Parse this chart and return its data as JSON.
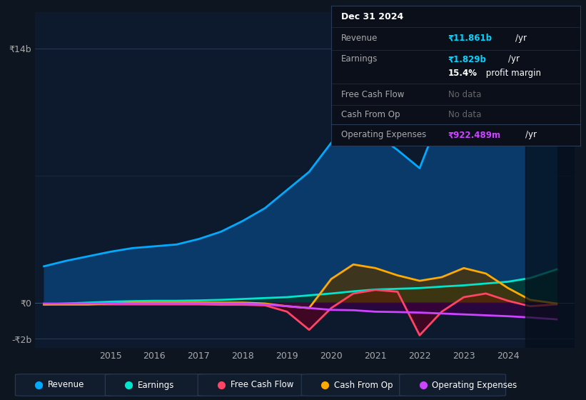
{
  "bg_color": "#0d1520",
  "panel_bg": "#0d1a2d",
  "ylim": [
    -2.5,
    16
  ],
  "xlim": [
    2013.3,
    2025.5
  ],
  "legend": [
    {
      "label": "Revenue",
      "color": "#00aaff"
    },
    {
      "label": "Earnings",
      "color": "#00e5cc"
    },
    {
      "label": "Free Cash Flow",
      "color": "#ff4466"
    },
    {
      "label": "Cash From Op",
      "color": "#ffaa00"
    },
    {
      "label": "Operating Expenses",
      "color": "#cc44ff"
    }
  ],
  "revenue": {
    "color": "#00aaff",
    "fill_color": "#0a3a6a",
    "x": [
      2013.5,
      2014.0,
      2014.5,
      2015.0,
      2015.5,
      2016.0,
      2016.5,
      2017.0,
      2017.5,
      2018.0,
      2018.5,
      2019.0,
      2019.5,
      2020.0,
      2020.5,
      2021.0,
      2021.5,
      2022.0,
      2022.5,
      2023.0,
      2023.5,
      2024.0,
      2024.5,
      2025.1
    ],
    "y": [
      2.0,
      2.3,
      2.55,
      2.8,
      3.0,
      3.1,
      3.2,
      3.5,
      3.9,
      4.5,
      5.2,
      6.2,
      7.2,
      8.8,
      9.6,
      9.3,
      8.4,
      7.4,
      10.5,
      13.5,
      13.0,
      11.0,
      10.5,
      11.861
    ]
  },
  "earnings": {
    "color": "#00e5cc",
    "fill_color": "#003d35",
    "x": [
      2013.5,
      2014.0,
      2014.5,
      2015.0,
      2015.5,
      2016.0,
      2016.5,
      2017.0,
      2017.5,
      2018.0,
      2018.5,
      2019.0,
      2019.5,
      2020.0,
      2020.5,
      2021.0,
      2021.5,
      2022.0,
      2022.5,
      2023.0,
      2023.5,
      2024.0,
      2024.5,
      2025.1
    ],
    "y": [
      -0.1,
      -0.05,
      0.0,
      0.05,
      0.08,
      0.1,
      0.1,
      0.12,
      0.15,
      0.2,
      0.25,
      0.3,
      0.4,
      0.5,
      0.62,
      0.72,
      0.76,
      0.8,
      0.88,
      0.95,
      1.05,
      1.15,
      1.35,
      1.829
    ]
  },
  "free_cash_flow": {
    "color": "#ff4466",
    "fill_color": "#550020",
    "x": [
      2013.5,
      2014.0,
      2014.5,
      2015.0,
      2015.5,
      2016.0,
      2016.5,
      2017.0,
      2017.5,
      2018.0,
      2018.5,
      2019.0,
      2019.5,
      2020.0,
      2020.5,
      2021.0,
      2021.5,
      2022.0,
      2022.5,
      2023.0,
      2023.5,
      2024.0,
      2024.5,
      2025.1
    ],
    "y": [
      -0.1,
      -0.1,
      -0.1,
      -0.1,
      -0.1,
      -0.1,
      -0.1,
      -0.1,
      -0.12,
      -0.12,
      -0.15,
      -0.5,
      -1.5,
      -0.3,
      0.5,
      0.7,
      0.6,
      -1.8,
      -0.5,
      0.3,
      0.5,
      0.1,
      -0.2,
      -0.1
    ]
  },
  "cash_from_op": {
    "color": "#ffaa00",
    "fill_color": "#553300",
    "x": [
      2013.5,
      2014.0,
      2014.5,
      2015.0,
      2015.5,
      2016.0,
      2016.5,
      2017.0,
      2017.5,
      2018.0,
      2018.5,
      2019.0,
      2019.5,
      2020.0,
      2020.5,
      2021.0,
      2021.5,
      2022.0,
      2022.5,
      2023.0,
      2023.5,
      2024.0,
      2024.5,
      2025.1
    ],
    "y": [
      -0.1,
      -0.1,
      -0.1,
      -0.05,
      0.0,
      0.0,
      0.0,
      0.0,
      0.0,
      0.0,
      -0.05,
      -0.2,
      -0.3,
      1.3,
      2.1,
      1.9,
      1.5,
      1.2,
      1.4,
      1.9,
      1.6,
      0.8,
      0.15,
      -0.05
    ]
  },
  "op_expenses": {
    "color": "#cc44ff",
    "fill_color": "#330044",
    "x": [
      2013.5,
      2014.0,
      2014.5,
      2015.0,
      2015.5,
      2016.0,
      2016.5,
      2017.0,
      2017.5,
      2018.0,
      2018.5,
      2019.0,
      2019.5,
      2020.0,
      2020.5,
      2021.0,
      2021.5,
      2022.0,
      2022.5,
      2023.0,
      2023.5,
      2024.0,
      2024.5,
      2025.1
    ],
    "y": [
      -0.05,
      -0.05,
      -0.05,
      -0.05,
      -0.05,
      -0.05,
      -0.05,
      -0.05,
      -0.05,
      -0.05,
      -0.1,
      -0.2,
      -0.3,
      -0.4,
      -0.42,
      -0.5,
      -0.52,
      -0.55,
      -0.6,
      -0.65,
      -0.7,
      -0.75,
      -0.82,
      -0.9224
    ]
  },
  "xtick_positions": [
    2015,
    2016,
    2017,
    2018,
    2019,
    2020,
    2021,
    2022,
    2023,
    2024
  ],
  "xtick_labels": [
    "2015",
    "2016",
    "2017",
    "2018",
    "2019",
    "2020",
    "2021",
    "2022",
    "2023",
    "2024"
  ],
  "tooltip": {
    "title": "Dec 31 2024",
    "revenue_label": "Revenue",
    "revenue_value": "₹11.861b",
    "revenue_color": "#00d4ff",
    "earnings_label": "Earnings",
    "earnings_value": "₹1.829b",
    "earnings_color": "#00d4ff",
    "margin_text": "15.4% profit margin",
    "fcf_label": "Free Cash Flow",
    "fcf_value": "No data",
    "cfo_label": "Cash From Op",
    "cfo_value": "No data",
    "oe_label": "Operating Expenses",
    "oe_value": "₹922.489m",
    "oe_color": "#cc44ff",
    "nodata_color": "#666666"
  }
}
